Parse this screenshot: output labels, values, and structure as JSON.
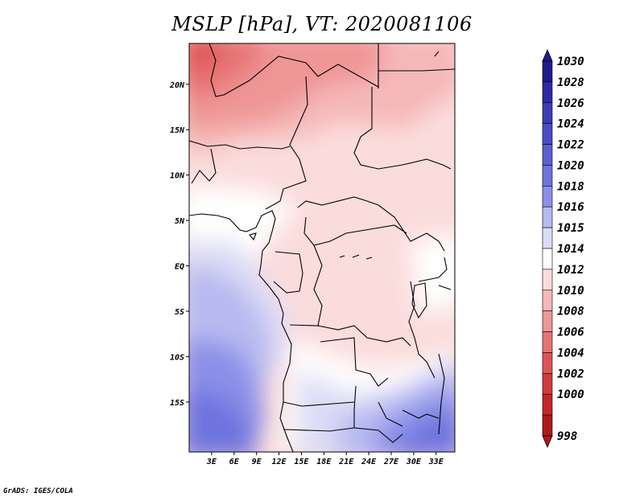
{
  "title": "MSLP [hPa], VT: 2020081106",
  "credit": "GrADS: IGES/COLA",
  "map": {
    "lon_range": [
      0,
      35.5
    ],
    "lat_range": [
      -20.5,
      24.5
    ],
    "x_ticks": [
      "3E",
      "6E",
      "9E",
      "12E",
      "15E",
      "18E",
      "21E",
      "24E",
      "27E",
      "30E",
      "33E"
    ],
    "y_ticks": [
      "20N",
      "15N",
      "10N",
      "5N",
      "EQ",
      "5S",
      "10S",
      "15S"
    ],
    "field": "Mean sea level pressure",
    "gradient": "higher pressure (blue) in the south-west and south-east, lower pressure (red) toward the north-west Sahara"
  },
  "colorbar": {
    "labels": [
      "1030",
      "1028",
      "1026",
      "1024",
      "1022",
      "1020",
      "1018",
      "1016",
      "1015",
      "1014",
      "1012",
      "1010",
      "1008",
      "1006",
      "1004",
      "1002",
      "1000",
      "998"
    ],
    "colors": [
      "#1f1a8f",
      "#2e2aa6",
      "#3d3cb8",
      "#4a4cc6",
      "#5a5fd3",
      "#6e73de",
      "#8b8fe8",
      "#b7baf1",
      "#dcdcf7",
      "#ffffff",
      "#fbdcdc",
      "#f5b8b8",
      "#ef9696",
      "#e77474",
      "#de5454",
      "#d33a3a",
      "#c52626",
      "#b01818"
    ]
  }
}
